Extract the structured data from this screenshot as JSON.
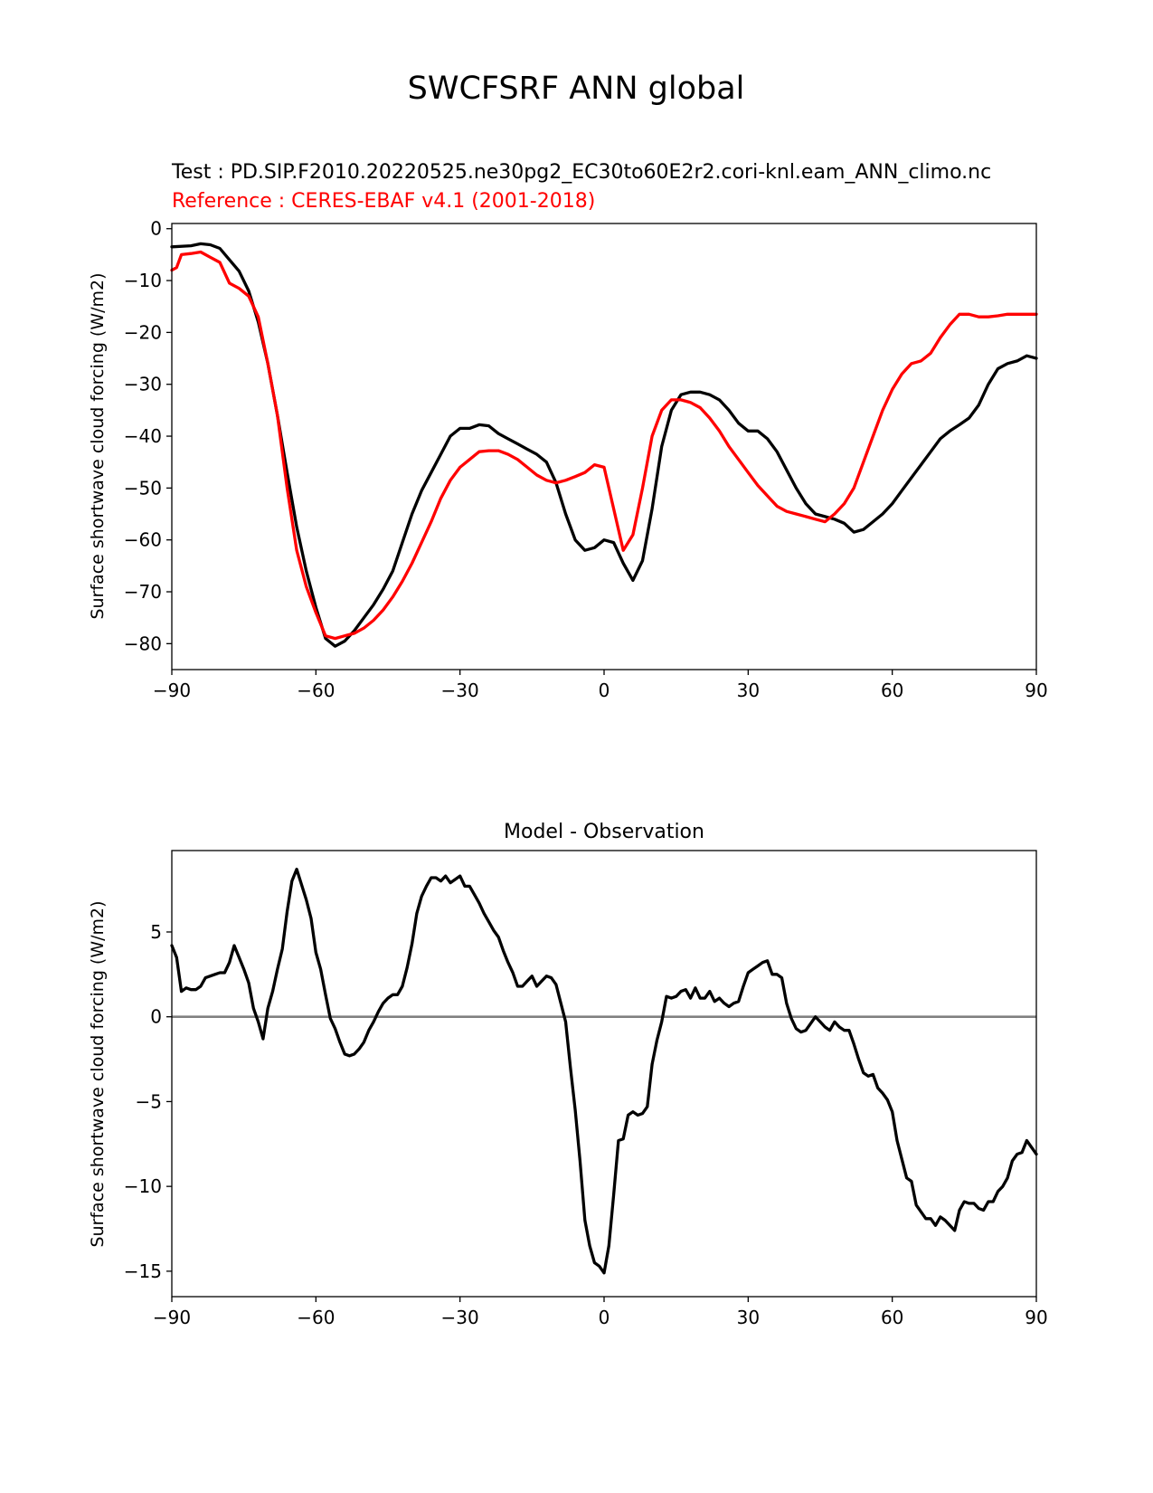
{
  "figure_title": "SWCFSRF ANN global",
  "colors": {
    "test": "#000000",
    "reference": "#ff0000",
    "zero_line": "#808080"
  },
  "chart_data": [
    {
      "type": "line",
      "test_label": "Test : PD.SIP.F2010.20220525.ne30pg2_EC30to60E2r2.cori-knl.eam_ANN_climo.nc",
      "ref_label": "Reference : CERES-EBAF v4.1 (2001-2018)",
      "xlabel": "",
      "ylabel": "Surface shortwave cloud forcing (W/m2)",
      "xlim": [
        -90,
        90
      ],
      "ylim": [
        -85,
        1
      ],
      "xticks": [
        -90,
        -60,
        -30,
        0,
        30,
        60,
        90
      ],
      "xtick_labels": [
        "−90",
        "−60",
        "−30",
        "0",
        "30",
        "60",
        "90"
      ],
      "yticks": [
        0,
        -10,
        -20,
        -30,
        -40,
        -50,
        -60,
        -70,
        -80
      ],
      "ytick_labels": [
        "0",
        "−10",
        "−20",
        "−30",
        "−40",
        "−50",
        "−60",
        "−70",
        "−80"
      ],
      "grid": false,
      "series": [
        {
          "role": "test",
          "x": [
            -90,
            -86,
            -84,
            -82,
            -80,
            -78,
            -76,
            -74,
            -72,
            -70,
            -68,
            -66,
            -64,
            -62,
            -60,
            -58,
            -56,
            -54,
            -52,
            -50,
            -48,
            -46,
            -44,
            -42,
            -40,
            -38,
            -36,
            -34,
            -32,
            -30,
            -28,
            -26,
            -24,
            -22,
            -20,
            -18,
            -16,
            -14,
            -12,
            -10,
            -8,
            -6,
            -4,
            -2,
            0,
            2,
            4,
            6,
            8,
            10,
            12,
            14,
            16,
            18,
            20,
            22,
            24,
            26,
            28,
            30,
            32,
            34,
            36,
            38,
            40,
            42,
            44,
            46,
            48,
            50,
            52,
            54,
            56,
            58,
            60,
            62,
            64,
            66,
            68,
            70,
            72,
            74,
            76,
            78,
            80,
            82,
            84,
            86,
            88,
            90
          ],
          "values": [
            -3.5,
            -3.3,
            -2.9,
            -3.1,
            -3.8,
            -6.0,
            -8.2,
            -12.0,
            -18.0,
            -26.0,
            -36.0,
            -47.0,
            -57.5,
            -66.0,
            -73.0,
            -79.0,
            -80.5,
            -79.5,
            -77.5,
            -75.0,
            -72.5,
            -69.5,
            -66.0,
            -60.5,
            -55.0,
            -50.5,
            -47.0,
            -43.5,
            -40.0,
            -38.5,
            -38.5,
            -37.8,
            -38.0,
            -39.5,
            -40.5,
            -41.5,
            -42.5,
            -43.5,
            -45.0,
            -49.0,
            -55.0,
            -60.0,
            -62.0,
            -61.5,
            -60.0,
            -60.5,
            -64.5,
            -67.8,
            -64.0,
            -54.0,
            -42.0,
            -35.0,
            -32.0,
            -31.5,
            -31.5,
            -32.0,
            -33.0,
            -35.0,
            -37.5,
            -39.0,
            -39.0,
            -40.5,
            -43.0,
            -46.5,
            -50.0,
            -53.0,
            -55.0,
            -55.5,
            -56.0,
            -56.8,
            -58.5,
            -58.0,
            -56.5,
            -55.0,
            -53.0,
            -50.5,
            -48.0,
            -45.5,
            -43.0,
            -40.5,
            -39.0,
            -37.8,
            -36.5,
            -34.0,
            -30.0,
            -27.0,
            -26.0,
            -25.5,
            -24.5,
            -25.0
          ]
        },
        {
          "role": "reference",
          "x": [
            -90,
            -89,
            -88,
            -86,
            -84,
            -82,
            -80,
            -78,
            -76,
            -74,
            -72,
            -70,
            -68,
            -66,
            -64,
            -62,
            -60,
            -58,
            -56,
            -54,
            -52,
            -50,
            -48,
            -46,
            -44,
            -42,
            -40,
            -38,
            -36,
            -34,
            -32,
            -30,
            -28,
            -26,
            -24,
            -22,
            -20,
            -18,
            -16,
            -14,
            -12,
            -10,
            -8,
            -6,
            -4,
            -2,
            0,
            2,
            4,
            6,
            8,
            10,
            12,
            14,
            16,
            18,
            20,
            22,
            24,
            26,
            28,
            30,
            32,
            34,
            36,
            38,
            40,
            42,
            44,
            46,
            48,
            50,
            52,
            54,
            56,
            58,
            60,
            62,
            64,
            66,
            68,
            70,
            72,
            74,
            76,
            78,
            80,
            82,
            84,
            86,
            88,
            90
          ],
          "values": [
            -8.0,
            -7.5,
            -5.0,
            -4.8,
            -4.5,
            -5.5,
            -6.5,
            -10.5,
            -11.5,
            -13.0,
            -17.0,
            -26.0,
            -36.0,
            -50.0,
            -62.0,
            -69.0,
            -74.0,
            -78.5,
            -79.0,
            -78.5,
            -78.0,
            -77.0,
            -75.5,
            -73.5,
            -71.0,
            -68.0,
            -64.5,
            -60.5,
            -56.5,
            -52.0,
            -48.5,
            -46.0,
            -44.5,
            -43.0,
            -42.8,
            -42.8,
            -43.5,
            -44.5,
            -46.0,
            -47.5,
            -48.5,
            -49.0,
            -48.5,
            -47.8,
            -47.0,
            -45.5,
            -46.0,
            -54.0,
            -62.0,
            -59.0,
            -50.0,
            -40.0,
            -35.0,
            -33.0,
            -33.0,
            -33.5,
            -34.5,
            -36.5,
            -39.0,
            -42.0,
            -44.5,
            -47.0,
            -49.5,
            -51.5,
            -53.5,
            -54.5,
            -55.0,
            -55.5,
            -56.0,
            -56.5,
            -55.0,
            -53.0,
            -50.0,
            -45.0,
            -40.0,
            -35.0,
            -31.0,
            -28.0,
            -26.0,
            -25.5,
            -24.0,
            -21.0,
            -18.5,
            -16.5,
            -16.5,
            -17.0,
            -17.0,
            -16.8,
            -16.5,
            -16.5,
            -16.5,
            -16.5
          ]
        }
      ]
    },
    {
      "type": "line",
      "title": "Model - Observation",
      "xlabel": "",
      "ylabel": "Surface shortwave cloud forcing (W/m2)",
      "xlim": [
        -90,
        90
      ],
      "ylim": [
        -16.5,
        9.8
      ],
      "xticks": [
        -90,
        -60,
        -30,
        0,
        30,
        60,
        90
      ],
      "xtick_labels": [
        "−90",
        "−60",
        "−30",
        "0",
        "30",
        "60",
        "90"
      ],
      "yticks": [
        5,
        0,
        -5,
        -10,
        -15
      ],
      "ytick_labels": [
        "5",
        "0",
        "−5",
        "−10",
        "−15"
      ],
      "zero_line": 0,
      "grid": false,
      "series": [
        {
          "role": "difference",
          "x": [
            -90,
            -89,
            -88,
            -87,
            -86,
            -85,
            -84,
            -83,
            -82,
            -81,
            -80,
            -79,
            -78,
            -77,
            -76,
            -75,
            -74,
            -73,
            -72,
            -71,
            -70,
            -69,
            -68,
            -67,
            -66,
            -65,
            -64,
            -63,
            -62,
            -61,
            -60,
            -59,
            -58,
            -57,
            -56,
            -55,
            -54,
            -53,
            -52,
            -51,
            -50,
            -49,
            -48,
            -47,
            -46,
            -45,
            -44,
            -43,
            -42,
            -41,
            -40,
            -39,
            -38,
            -37,
            -36,
            -35,
            -34,
            -33,
            -32,
            -31,
            -30,
            -29,
            -28,
            -27,
            -26,
            -25,
            -24,
            -23,
            -22,
            -21,
            -20,
            -19,
            -18,
            -17,
            -16,
            -15,
            -14,
            -13,
            -12,
            -11,
            -10,
            -9,
            -8,
            -7,
            -6,
            -5,
            -4,
            -3,
            -2,
            -1,
            0,
            1,
            2,
            3,
            4,
            5,
            6,
            7,
            8,
            9,
            10,
            11,
            12,
            13,
            14,
            15,
            16,
            17,
            18,
            19,
            20,
            21,
            22,
            23,
            24,
            25,
            26,
            27,
            28,
            29,
            30,
            31,
            32,
            33,
            34,
            35,
            36,
            37,
            38,
            39,
            40,
            41,
            42,
            43,
            44,
            45,
            46,
            47,
            48,
            49,
            50,
            51,
            52,
            53,
            54,
            55,
            56,
            57,
            58,
            59,
            60,
            61,
            62,
            63,
            64,
            65,
            66,
            67,
            68,
            69,
            70,
            71,
            72,
            73,
            74,
            75,
            76,
            77,
            78,
            79,
            80,
            81,
            82,
            83,
            84,
            85,
            86,
            87,
            88,
            89,
            90
          ],
          "values": [
            4.2,
            3.5,
            1.5,
            1.7,
            1.6,
            1.6,
            1.8,
            2.3,
            2.4,
            2.5,
            2.6,
            2.6,
            3.2,
            4.2,
            3.5,
            2.8,
            2.0,
            0.5,
            -0.3,
            -1.3,
            0.5,
            1.5,
            2.8,
            4.0,
            6.2,
            8.0,
            8.7,
            7.8,
            6.9,
            5.8,
            3.8,
            2.8,
            1.3,
            -0.1,
            -0.7,
            -1.5,
            -2.2,
            -2.3,
            -2.2,
            -1.9,
            -1.5,
            -0.8,
            -0.3,
            0.3,
            0.8,
            1.1,
            1.3,
            1.3,
            1.8,
            2.9,
            4.3,
            6.1,
            7.1,
            7.7,
            8.2,
            8.2,
            8.0,
            8.3,
            7.9,
            8.1,
            8.3,
            7.7,
            7.7,
            7.2,
            6.7,
            6.1,
            5.6,
            5.1,
            4.7,
            3.9,
            3.2,
            2.6,
            1.8,
            1.8,
            2.1,
            2.4,
            1.8,
            2.1,
            2.4,
            2.3,
            1.9,
            0.8,
            -0.3,
            -3.0,
            -5.5,
            -8.5,
            -12.0,
            -13.5,
            -14.5,
            -14.7,
            -15.1,
            -13.5,
            -10.5,
            -7.3,
            -7.2,
            -5.8,
            -5.6,
            -5.8,
            -5.7,
            -5.3,
            -2.8,
            -1.4,
            -0.3,
            1.2,
            1.1,
            1.2,
            1.5,
            1.6,
            1.1,
            1.7,
            1.1,
            1.1,
            1.5,
            0.9,
            1.1,
            0.8,
            0.6,
            0.8,
            0.9,
            1.8,
            2.6,
            2.8,
            3.0,
            3.2,
            3.3,
            2.5,
            2.5,
            2.3,
            0.8,
            -0.1,
            -0.7,
            -0.9,
            -0.8,
            -0.4,
            0.0,
            -0.3,
            -0.6,
            -0.8,
            -0.3,
            -0.6,
            -0.8,
            -0.8,
            -1.6,
            -2.5,
            -3.3,
            -3.5,
            -3.4,
            -4.2,
            -4.5,
            -4.9,
            -5.6,
            -7.3,
            -8.4,
            -9.5,
            -9.7,
            -11.1,
            -11.5,
            -11.9,
            -11.9,
            -12.3,
            -11.8,
            -12.0,
            -12.3,
            -12.6,
            -11.4,
            -10.9,
            -11.0,
            -11.0,
            -11.3,
            -11.4,
            -10.9,
            -10.9,
            -10.3,
            -10.0,
            -9.5,
            -8.5,
            -8.1,
            -8.0,
            -7.3,
            -7.7,
            -8.1
          ]
        }
      ]
    }
  ]
}
